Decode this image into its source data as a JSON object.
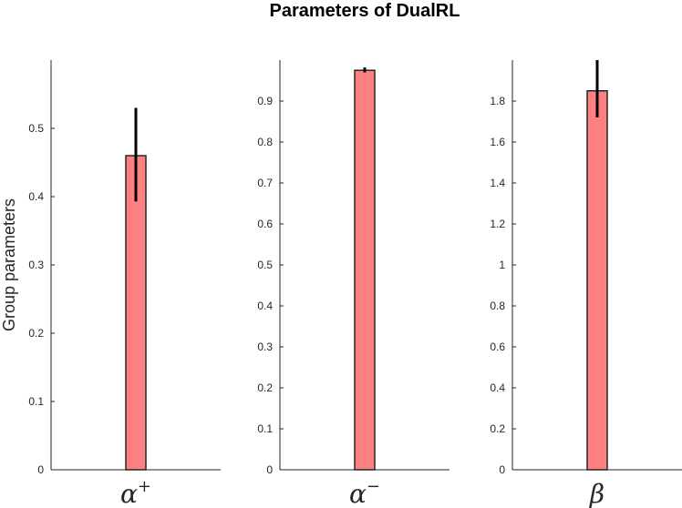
{
  "chart_data": {
    "title": "Parameters of DualRL",
    "ylabel": "Group parameters",
    "panels": [
      {
        "type": "bar",
        "category": "α",
        "category_sup": "+",
        "value": 0.46,
        "error": [
          0.393,
          0.53
        ],
        "ylim": [
          0,
          0.6
        ],
        "yticks": [
          0,
          0.1,
          0.2,
          0.3,
          0.4,
          0.5
        ],
        "ytick_labels": [
          "0",
          "0.1",
          "0.2",
          "0.3",
          "0.4",
          "0.5"
        ]
      },
      {
        "type": "bar",
        "category": "α",
        "category_sup": "−",
        "value": 0.975,
        "error": [
          0.97,
          0.982
        ],
        "ylim": [
          0,
          1.0
        ],
        "yticks": [
          0,
          0.1,
          0.2,
          0.3,
          0.4,
          0.5,
          0.6,
          0.7,
          0.8,
          0.9
        ],
        "ytick_labels": [
          "0",
          "0.1",
          "0.2",
          "0.3",
          "0.4",
          "0.5",
          "0.6",
          "0.7",
          "0.8",
          "0.9"
        ]
      },
      {
        "type": "bar",
        "category": "β",
        "category_sup": "",
        "value": 1.85,
        "error": [
          1.72,
          2.0
        ],
        "ylim": [
          0,
          2.0
        ],
        "yticks": [
          0,
          0.2,
          0.4,
          0.6,
          0.8,
          1.0,
          1.2,
          1.4,
          1.6,
          1.8
        ],
        "ytick_labels": [
          "0",
          "0.2",
          "0.4",
          "0.6",
          "0.8",
          "1",
          "1.2",
          "1.4",
          "1.6",
          "1.8"
        ]
      }
    ],
    "bar_color": "#ff8080",
    "bar_edge_color": "#262626",
    "error_color": "#000000",
    "grid": false,
    "legend": "none"
  }
}
